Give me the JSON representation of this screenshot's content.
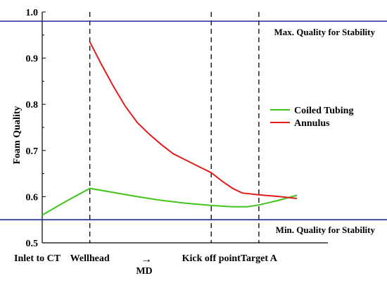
{
  "chart_data": {
    "type": "line",
    "ylabel": "Foam Quality",
    "xlabel": "MD",
    "ylim": [
      0.5,
      1.0
    ],
    "yticks": [
      "0.5",
      "0.6",
      "0.7",
      "0.8",
      "0.9",
      "1.0"
    ],
    "x_landmarks": [
      {
        "label": "Inlet to CT",
        "x": 0
      },
      {
        "label": "Wellhead",
        "x": 1
      },
      {
        "label": "Kick off point",
        "x": 3.55
      },
      {
        "label": "Target A",
        "x": 4.55
      }
    ],
    "reference_lines": [
      {
        "label": "Max. Quality for Stability",
        "y": 0.98,
        "color": "#1f2d9c"
      },
      {
        "label": "Min. Quality for Stability",
        "y": 0.55,
        "color": "#1f2d9c"
      }
    ],
    "series": [
      {
        "name": "Coiled Tubing",
        "color": "#41c51b",
        "points": [
          [
            0,
            0.56
          ],
          [
            0.5,
            0.59
          ],
          [
            1.0,
            0.618
          ],
          [
            1.5,
            0.609
          ],
          [
            2.0,
            0.6
          ],
          [
            2.5,
            0.592
          ],
          [
            3.0,
            0.586
          ],
          [
            3.55,
            0.581
          ],
          [
            4.0,
            0.578
          ],
          [
            4.3,
            0.578
          ],
          [
            4.55,
            0.582
          ],
          [
            5.0,
            0.593
          ],
          [
            5.35,
            0.603
          ]
        ]
      },
      {
        "name": "Annulus",
        "color": "#e21b1b",
        "points": [
          [
            1.0,
            0.935
          ],
          [
            1.25,
            0.885
          ],
          [
            1.5,
            0.838
          ],
          [
            1.75,
            0.795
          ],
          [
            2.0,
            0.76
          ],
          [
            2.25,
            0.735
          ],
          [
            2.5,
            0.713
          ],
          [
            2.75,
            0.693
          ],
          [
            3.0,
            0.68
          ],
          [
            3.25,
            0.667
          ],
          [
            3.55,
            0.652
          ],
          [
            3.8,
            0.632
          ],
          [
            4.0,
            0.618
          ],
          [
            4.2,
            0.608
          ],
          [
            4.55,
            0.604
          ],
          [
            5.0,
            0.6
          ],
          [
            5.35,
            0.596
          ]
        ]
      }
    ],
    "legend_position": "right",
    "md_arrow": "→"
  }
}
